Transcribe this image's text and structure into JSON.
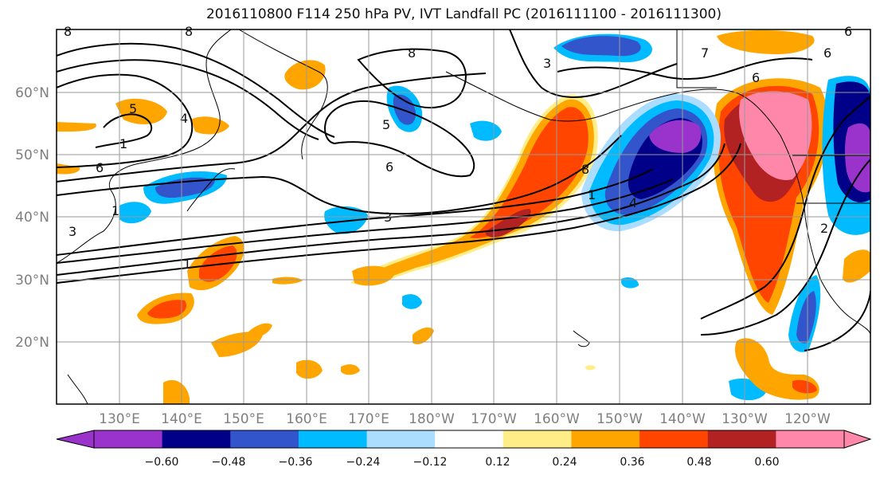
{
  "title": "2016110800 F114 250 hPa PV, IVT Landfall PC (2016111100 - 2016111300)",
  "lon_labels": [
    "130°E",
    "140°E",
    "150°E",
    "160°E",
    "170°E",
    "180°W",
    "170°W",
    "160°W",
    "150°W",
    "140°W",
    "130°W",
    "120°W"
  ],
  "lat_labels": [
    "60°N",
    "50°N",
    "40°N",
    "30°N",
    "20°N"
  ],
  "colorbar": {
    "colors": [
      "#9933cc",
      "#000088",
      "#3355cc",
      "#00bbff",
      "#aaddff",
      "#ffffff",
      "#ffee88",
      "#ffa500",
      "#ff4500",
      "#b22222",
      "#ff88aa"
    ],
    "labels": [
      "−0.60",
      "−0.48",
      "−0.36",
      "−0.24",
      "−0.12",
      "0.12",
      "0.24",
      "0.36",
      "0.48",
      "0.60"
    ]
  },
  "contour_labels": [
    "8",
    "8",
    "8",
    "3",
    "6",
    "5",
    "4",
    "1",
    "6",
    "5",
    "6",
    "3",
    "1",
    "3",
    "1",
    "4",
    "6",
    "8",
    "1",
    "2",
    "6",
    "7"
  ]
}
